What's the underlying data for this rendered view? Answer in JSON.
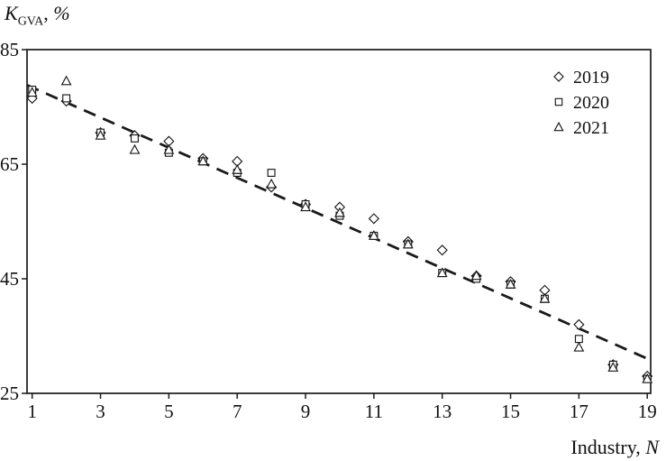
{
  "labels": {
    "title_k": "K",
    "title_sub": "GVA",
    "title_rest": ", ",
    "title_percent": "%",
    "xlabel_text": "Industry, ",
    "xlabel_var": "N"
  },
  "chart_data": {
    "type": "scatter",
    "title": "K_GVA, %",
    "xlabel": "Industry, N",
    "ylabel": "K_GVA, %",
    "x_domain": [
      0.85,
      19.1
    ],
    "y_domain": [
      25,
      85
    ],
    "x_ticks": [
      1,
      3,
      5,
      7,
      9,
      11,
      13,
      15,
      17,
      19
    ],
    "y_ticks": [
      25,
      45,
      65,
      85
    ],
    "grid": false,
    "legend_position": "top-right",
    "x": [
      1,
      2,
      3,
      4,
      5,
      6,
      7,
      8,
      9,
      10,
      11,
      12,
      13,
      14,
      15,
      16,
      17,
      18,
      19
    ],
    "series": [
      {
        "name": "2019",
        "marker": "diamond",
        "values": [
          76.5,
          76,
          70.5,
          70,
          69,
          66,
          65.5,
          61,
          58,
          57.5,
          55.5,
          51.5,
          50,
          45.5,
          44.5,
          43,
          37,
          30,
          28
        ]
      },
      {
        "name": "2020",
        "marker": "square",
        "values": [
          78,
          76.5,
          70.5,
          69.5,
          67,
          65.5,
          63.5,
          63.5,
          58,
          56,
          52.5,
          51,
          46,
          45,
          44,
          41.5,
          34.5,
          30,
          27.5
        ]
      },
      {
        "name": "2021",
        "marker": "triangle",
        "values": [
          77.5,
          79.5,
          70,
          67.5,
          67.5,
          65.5,
          64,
          61.5,
          57.5,
          56.5,
          52.5,
          51,
          46,
          45.5,
          44,
          41.5,
          33,
          29.5,
          27.5
        ]
      }
    ],
    "trend_line": {
      "style": "dashed",
      "x1": 0.85,
      "y1": 78.8,
      "x2": 19.1,
      "y2": 30.8
    },
    "colors": {
      "marker": "#1a1a1a",
      "trend": "#1a1a1a",
      "axis": "#1a1a1a"
    }
  }
}
